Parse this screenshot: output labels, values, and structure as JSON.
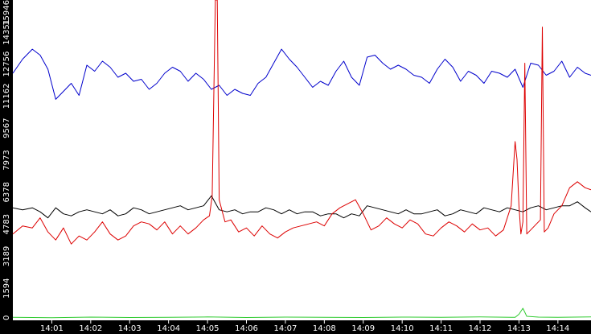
{
  "chart_data": {
    "type": "line",
    "title": "",
    "xlabel": "",
    "ylabel": "",
    "x_ticks": [
      "14:01",
      "14:02",
      "14:03",
      "14:04",
      "14:05",
      "14:06",
      "14:07",
      "14:08",
      "14:09",
      "14:10",
      "14:11",
      "14:12",
      "14:13",
      "14:14"
    ],
    "x_tick_minutes": [
      1,
      2,
      3,
      4,
      5,
      6,
      7,
      8,
      9,
      10,
      11,
      12,
      13,
      14
    ],
    "y_ticks": [
      "0",
      "1594",
      "3189",
      "4783",
      "6378",
      "7973",
      "9567",
      "11162",
      "12756",
      "14351",
      "15946"
    ],
    "y_tick_values": [
      0,
      1594,
      3189,
      4783,
      6378,
      7973,
      9567,
      11162,
      12756,
      14351,
      15946
    ],
    "xlim": [
      0.0,
      14.85
    ],
    "ylim": [
      0,
      15946
    ],
    "grid": false,
    "legend": "none",
    "series": [
      {
        "color": "#0000cc",
        "x": [
          0.0,
          0.25,
          0.5,
          0.7,
          0.9,
          1.1,
          1.3,
          1.5,
          1.7,
          1.9,
          2.1,
          2.3,
          2.5,
          2.7,
          2.9,
          3.1,
          3.3,
          3.5,
          3.7,
          3.9,
          4.1,
          4.3,
          4.5,
          4.7,
          4.9,
          5.1,
          5.3,
          5.5,
          5.7,
          5.9,
          6.1,
          6.3,
          6.5,
          6.7,
          6.9,
          7.1,
          7.3,
          7.5,
          7.7,
          7.9,
          8.1,
          8.3,
          8.5,
          8.7,
          8.9,
          9.1,
          9.3,
          9.5,
          9.7,
          9.9,
          10.1,
          10.3,
          10.5,
          10.7,
          10.9,
          11.1,
          11.3,
          11.5,
          11.7,
          11.9,
          12.1,
          12.3,
          12.5,
          12.7,
          12.9,
          13.1,
          13.3,
          13.5,
          13.7,
          13.9,
          14.1,
          14.3,
          14.5,
          14.7,
          14.85
        ],
        "y": [
          12300,
          13000,
          13500,
          13200,
          12500,
          11000,
          11400,
          11800,
          11200,
          12700,
          12400,
          12900,
          12600,
          12100,
          12300,
          11900,
          12000,
          11500,
          11800,
          12300,
          12600,
          12400,
          11900,
          12300,
          12000,
          11500,
          11700,
          11200,
          11500,
          11300,
          11200,
          11800,
          12100,
          12800,
          13500,
          13000,
          12600,
          12100,
          11600,
          11900,
          11700,
          12400,
          12900,
          12100,
          11700,
          13100,
          13200,
          12800,
          12500,
          12700,
          12500,
          12200,
          12100,
          11800,
          12500,
          13000,
          12600,
          11900,
          12400,
          12200,
          11800,
          12400,
          12300,
          12100,
          12500,
          11600,
          12800,
          12700,
          12200,
          12400,
          12900,
          12100,
          12600,
          12300,
          12200
        ]
      },
      {
        "color": "#000000",
        "x": [
          0.0,
          0.25,
          0.5,
          0.7,
          0.9,
          1.1,
          1.3,
          1.5,
          1.7,
          1.9,
          2.1,
          2.3,
          2.5,
          2.7,
          2.9,
          3.1,
          3.3,
          3.5,
          3.7,
          3.9,
          4.1,
          4.3,
          4.5,
          4.7,
          4.9,
          5.1,
          5.3,
          5.5,
          5.7,
          5.9,
          6.1,
          6.3,
          6.5,
          6.7,
          6.9,
          7.1,
          7.3,
          7.5,
          7.7,
          7.9,
          8.1,
          8.3,
          8.5,
          8.7,
          8.9,
          9.1,
          9.3,
          9.5,
          9.7,
          9.9,
          10.1,
          10.3,
          10.5,
          10.7,
          10.9,
          11.1,
          11.3,
          11.5,
          11.7,
          11.9,
          12.1,
          12.3,
          12.5,
          12.7,
          12.9,
          13.1,
          13.3,
          13.5,
          13.7,
          13.9,
          14.1,
          14.3,
          14.5,
          14.7,
          14.85
        ],
        "y": [
          5600,
          5500,
          5600,
          5400,
          5100,
          5600,
          5300,
          5200,
          5400,
          5500,
          5400,
          5300,
          5500,
          5200,
          5300,
          5600,
          5500,
          5300,
          5400,
          5500,
          5600,
          5700,
          5500,
          5600,
          5700,
          6200,
          5500,
          5400,
          5500,
          5300,
          5400,
          5400,
          5600,
          5500,
          5300,
          5500,
          5300,
          5400,
          5400,
          5200,
          5300,
          5300,
          5100,
          5300,
          5200,
          5700,
          5600,
          5500,
          5400,
          5300,
          5500,
          5300,
          5300,
          5400,
          5500,
          5200,
          5300,
          5500,
          5400,
          5300,
          5600,
          5500,
          5400,
          5600,
          5500,
          5400,
          5600,
          5700,
          5500,
          5600,
          5700,
          5700,
          5900,
          5600,
          5400
        ]
      },
      {
        "color": "#dd0000",
        "x": [
          0.0,
          0.25,
          0.5,
          0.7,
          0.9,
          1.1,
          1.3,
          1.5,
          1.7,
          1.9,
          2.1,
          2.3,
          2.5,
          2.7,
          2.9,
          3.1,
          3.3,
          3.5,
          3.7,
          3.9,
          4.1,
          4.3,
          4.5,
          4.7,
          4.9,
          5.05,
          5.12,
          5.2,
          5.25,
          5.3,
          5.38,
          5.45,
          5.6,
          5.8,
          6.0,
          6.2,
          6.4,
          6.6,
          6.8,
          7.0,
          7.2,
          7.4,
          7.6,
          7.8,
          8.0,
          8.2,
          8.4,
          8.6,
          8.8,
          9.0,
          9.2,
          9.4,
          9.6,
          9.8,
          10.0,
          10.2,
          10.4,
          10.6,
          10.8,
          11.0,
          11.2,
          11.4,
          11.6,
          11.8,
          12.0,
          12.2,
          12.4,
          12.6,
          12.8,
          12.9,
          12.95,
          13.0,
          13.05,
          13.1,
          13.15,
          13.2,
          13.3,
          13.45,
          13.55,
          13.6,
          13.65,
          13.75,
          13.9,
          14.1,
          14.3,
          14.5,
          14.7,
          14.85
        ],
        "y": [
          4300,
          4700,
          4600,
          5100,
          4400,
          4000,
          4600,
          3800,
          4200,
          4000,
          4400,
          4900,
          4300,
          4000,
          4200,
          4700,
          4900,
          4800,
          4500,
          4900,
          4300,
          4700,
          4300,
          4600,
          5000,
          5200,
          6200,
          15946,
          15946,
          6000,
          5400,
          4900,
          5000,
          4400,
          4600,
          4200,
          4700,
          4300,
          4100,
          4400,
          4600,
          4700,
          4800,
          4900,
          4700,
          5300,
          5600,
          5800,
          6000,
          5300,
          4500,
          4700,
          5100,
          4800,
          4600,
          5000,
          4800,
          4300,
          4200,
          4600,
          4900,
          4700,
          4400,
          4800,
          4500,
          4600,
          4200,
          4500,
          5700,
          8900,
          8000,
          5700,
          4300,
          4900,
          12800,
          4300,
          4500,
          4800,
          5000,
          14600,
          4400,
          4600,
          5300,
          5700,
          6600,
          6900,
          6600,
          6500
        ]
      },
      {
        "color": "#33cc33",
        "x": [
          0.0,
          1.0,
          2.0,
          3.0,
          4.0,
          5.0,
          6.0,
          7.0,
          8.0,
          9.0,
          10.0,
          11.0,
          12.0,
          12.9,
          13.0,
          13.1,
          13.2,
          13.5,
          14.0,
          14.85
        ],
        "y": [
          150,
          130,
          160,
          140,
          150,
          170,
          140,
          160,
          150,
          140,
          160,
          150,
          170,
          150,
          300,
          600,
          200,
          160,
          150,
          170
        ]
      }
    ]
  }
}
